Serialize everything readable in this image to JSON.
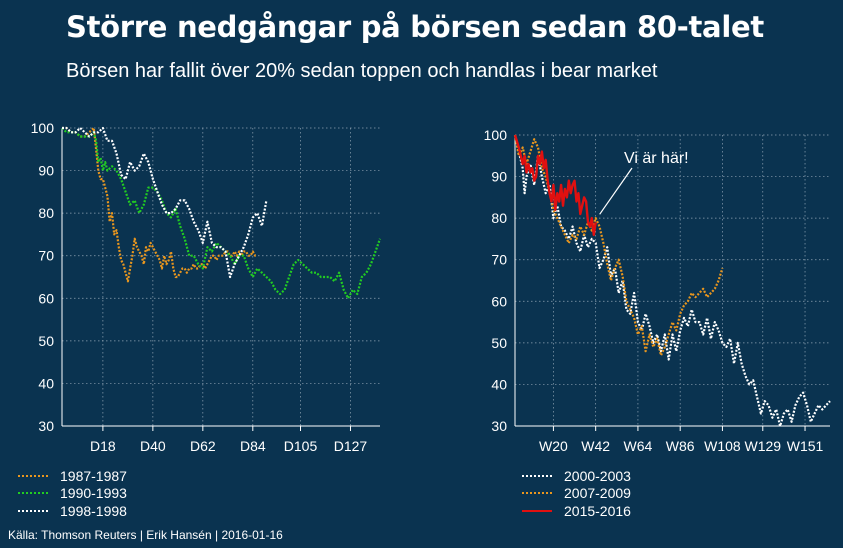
{
  "header": {
    "title": "Större nedgångar på börsen sedan 80-talet",
    "subtitle": "Börsen har fallit över 20% sedan toppen och handlas i bear market"
  },
  "footer": {
    "source": "Källa: Thomson Reuters | Erik Hansén | 2016-01-16"
  },
  "colors": {
    "background": "#0a3350",
    "orange": "#e8961e",
    "green": "#22cc22",
    "white": "#ffffff",
    "red": "#e01010",
    "grid": "#8fa3b3"
  },
  "chart_data": [
    {
      "type": "line",
      "xlabel": "",
      "ylabel": "",
      "x_unit": "days",
      "xlim": [
        0,
        140
      ],
      "ylim": [
        30,
        100
      ],
      "yticks": [
        30,
        40,
        50,
        60,
        70,
        80,
        90,
        100
      ],
      "xtick_labels": [
        "D18",
        "D40",
        "D62",
        "D84",
        "D105",
        "D127"
      ],
      "xtick_values": [
        18,
        40,
        62,
        84,
        105,
        127
      ],
      "grid": true,
      "legend_position": "bottom-left",
      "series": [
        {
          "name": "1987-1987",
          "color": "#e8961e",
          "x": [
            0,
            2,
            4,
            6,
            8,
            10,
            12,
            14,
            15,
            16,
            17,
            18,
            19,
            20,
            21,
            22,
            23,
            24,
            25,
            26,
            27,
            28,
            29,
            30,
            31,
            32,
            33,
            34,
            35,
            36,
            37,
            38,
            39,
            40,
            41,
            42,
            43,
            44,
            45,
            46,
            47,
            48,
            49,
            50,
            51,
            52,
            53,
            54,
            55,
            56,
            57,
            58,
            59,
            60,
            61,
            62,
            63,
            64,
            65,
            66,
            67,
            68,
            69,
            70,
            71,
            72,
            73,
            74,
            75,
            76,
            77,
            78,
            79,
            80,
            81,
            82,
            83,
            84,
            85,
            86
          ],
          "y": [
            100,
            100,
            99,
            99,
            98,
            98,
            99,
            100,
            95,
            90,
            88,
            88,
            86,
            84,
            78,
            80,
            75,
            76,
            72,
            69,
            68,
            66,
            64,
            67,
            70,
            74,
            72,
            71,
            70,
            68,
            72,
            71,
            73,
            72,
            71,
            70,
            69,
            67,
            70,
            68,
            69,
            71,
            67,
            65,
            65,
            66,
            67,
            67,
            66,
            67,
            67,
            68,
            67,
            67,
            68,
            68,
            67,
            68,
            69,
            70,
            70,
            69,
            70,
            70,
            70,
            71,
            71,
            70,
            70,
            71,
            70,
            71,
            70,
            71,
            71,
            70,
            70,
            71,
            70,
            70
          ]
        },
        {
          "name": "1990-1993",
          "color": "#22cc22",
          "x": [
            0,
            2,
            4,
            6,
            8,
            10,
            12,
            14,
            15,
            16,
            17,
            18,
            19,
            20,
            22,
            24,
            26,
            28,
            30,
            32,
            34,
            36,
            38,
            40,
            42,
            44,
            46,
            48,
            50,
            52,
            54,
            56,
            58,
            60,
            62,
            64,
            66,
            68,
            70,
            72,
            74,
            76,
            78,
            80,
            82,
            84,
            86,
            88,
            90,
            92,
            94,
            96,
            98,
            100,
            102,
            104,
            106,
            108,
            110,
            112,
            114,
            116,
            118,
            120,
            122,
            124,
            126,
            128,
            130,
            132,
            134,
            136,
            138,
            140
          ],
          "y": [
            100,
            99,
            99,
            99,
            98,
            98,
            98,
            99,
            97,
            92,
            93,
            90,
            92,
            90,
            91,
            90,
            88,
            85,
            82,
            83,
            80,
            82,
            86,
            86,
            85,
            83,
            80,
            79,
            81,
            77,
            74,
            70,
            70,
            68,
            67,
            72,
            71,
            73,
            72,
            71,
            70,
            68,
            70,
            70,
            67,
            65,
            67,
            66,
            65,
            64,
            62,
            61,
            62,
            65,
            68,
            69,
            68,
            67,
            66,
            66,
            65,
            65,
            65,
            64,
            66,
            62,
            60,
            62,
            61,
            65,
            66,
            68,
            71,
            74
          ]
        },
        {
          "name": "1998-1998",
          "color": "#ffffff",
          "x": [
            0,
            2,
            4,
            6,
            8,
            10,
            12,
            14,
            16,
            18,
            20,
            22,
            24,
            26,
            28,
            30,
            32,
            34,
            36,
            38,
            40,
            42,
            44,
            46,
            48,
            50,
            52,
            54,
            56,
            58,
            60,
            62,
            64,
            66,
            68,
            70,
            72,
            74,
            76,
            78,
            80,
            82,
            84,
            86,
            88,
            90
          ],
          "y": [
            100,
            100,
            99,
            99,
            100,
            99,
            98,
            99,
            99,
            100,
            97,
            97,
            94,
            89,
            88,
            92,
            90,
            91,
            94,
            92,
            88,
            85,
            82,
            80,
            80,
            81,
            83,
            83,
            81,
            78,
            76,
            73,
            78,
            73,
            72,
            72,
            71,
            65,
            68,
            70,
            72,
            75,
            79,
            80,
            77,
            83
          ]
        }
      ]
    },
    {
      "type": "line",
      "xlabel": "",
      "ylabel": "",
      "x_unit": "weeks",
      "xlim": [
        0,
        164
      ],
      "ylim": [
        30,
        100
      ],
      "yticks": [
        30,
        40,
        50,
        60,
        70,
        80,
        90,
        100
      ],
      "xtick_labels": [
        "W20",
        "W42",
        "W64",
        "W86",
        "W108",
        "W129",
        "W151"
      ],
      "xtick_values": [
        20,
        42,
        64,
        86,
        108,
        129,
        151
      ],
      "grid": true,
      "legend_position": "bottom-left",
      "annotation": "Vi är här!",
      "series": [
        {
          "name": "2000-2003",
          "color": "#ffffff",
          "x": [
            0,
            2,
            4,
            5,
            6,
            8,
            10,
            12,
            14,
            16,
            18,
            20,
            22,
            24,
            26,
            28,
            30,
            32,
            34,
            36,
            38,
            40,
            42,
            44,
            46,
            48,
            50,
            52,
            54,
            56,
            58,
            60,
            62,
            64,
            66,
            68,
            70,
            72,
            74,
            76,
            78,
            80,
            82,
            84,
            86,
            88,
            90,
            92,
            94,
            96,
            98,
            100,
            102,
            104,
            106,
            108,
            110,
            112,
            114,
            116,
            118,
            120,
            122,
            124,
            126,
            128,
            130,
            132,
            134,
            136,
            138,
            140,
            142,
            144,
            146,
            148,
            150,
            152,
            154,
            156,
            158,
            160,
            162,
            164
          ],
          "y": [
            100,
            96,
            92,
            86,
            90,
            93,
            88,
            95,
            90,
            86,
            88,
            80,
            83,
            78,
            77,
            75,
            78,
            74,
            72,
            76,
            73,
            75,
            74,
            68,
            70,
            73,
            66,
            68,
            62,
            65,
            58,
            57,
            62,
            55,
            53,
            57,
            54,
            50,
            52,
            48,
            52,
            46,
            52,
            48,
            53,
            56,
            54,
            58,
            55,
            55,
            52,
            56,
            51,
            55,
            53,
            50,
            49,
            51,
            45,
            50,
            45,
            42,
            40,
            41,
            37,
            33,
            36,
            35,
            32,
            34,
            30,
            33,
            34,
            31,
            35,
            37,
            38,
            35,
            31,
            33,
            35,
            34,
            35,
            36
          ]
        },
        {
          "name": "2007-2009",
          "color": "#e8961e",
          "x": [
            0,
            2,
            4,
            6,
            8,
            10,
            12,
            14,
            16,
            18,
            20,
            22,
            24,
            26,
            28,
            30,
            32,
            34,
            36,
            38,
            40,
            42,
            44,
            46,
            48,
            50,
            52,
            54,
            56,
            58,
            60,
            62,
            64,
            66,
            68,
            70,
            72,
            74,
            76,
            78,
            80,
            82,
            84,
            86,
            88,
            90,
            92,
            94,
            96,
            98,
            100,
            102,
            104,
            106,
            108
          ],
          "y": [
            100,
            95,
            97,
            93,
            96,
            99,
            97,
            92,
            90,
            86,
            82,
            80,
            78,
            76,
            74,
            76,
            75,
            78,
            76,
            79,
            77,
            80,
            78,
            74,
            69,
            65,
            68,
            70,
            66,
            60,
            58,
            56,
            52,
            54,
            48,
            52,
            49,
            51,
            47,
            49,
            52,
            55,
            53,
            57,
            59,
            60,
            62,
            61,
            62,
            63,
            61,
            62,
            63,
            65,
            68
          ]
        },
        {
          "name": "2015-2016",
          "color": "#e01010",
          "x": [
            0,
            2,
            3,
            4,
            5,
            6,
            7,
            8,
            9,
            10,
            11,
            12,
            13,
            14,
            15,
            16,
            17,
            18,
            19,
            20,
            21,
            22,
            23,
            24,
            25,
            26,
            27,
            28,
            29,
            30,
            31,
            32,
            33,
            34,
            35,
            36,
            37,
            38,
            39,
            40,
            41,
            42
          ],
          "y": [
            100,
            97,
            95,
            93,
            95,
            91,
            93,
            91,
            92,
            89,
            90,
            95,
            93,
            96,
            92,
            94,
            89,
            86,
            84,
            88,
            82,
            86,
            84,
            88,
            83,
            87,
            85,
            89,
            86,
            88,
            89,
            84,
            86,
            81,
            83,
            85,
            84,
            79,
            78,
            80,
            76,
            79
          ]
        }
      ]
    }
  ]
}
